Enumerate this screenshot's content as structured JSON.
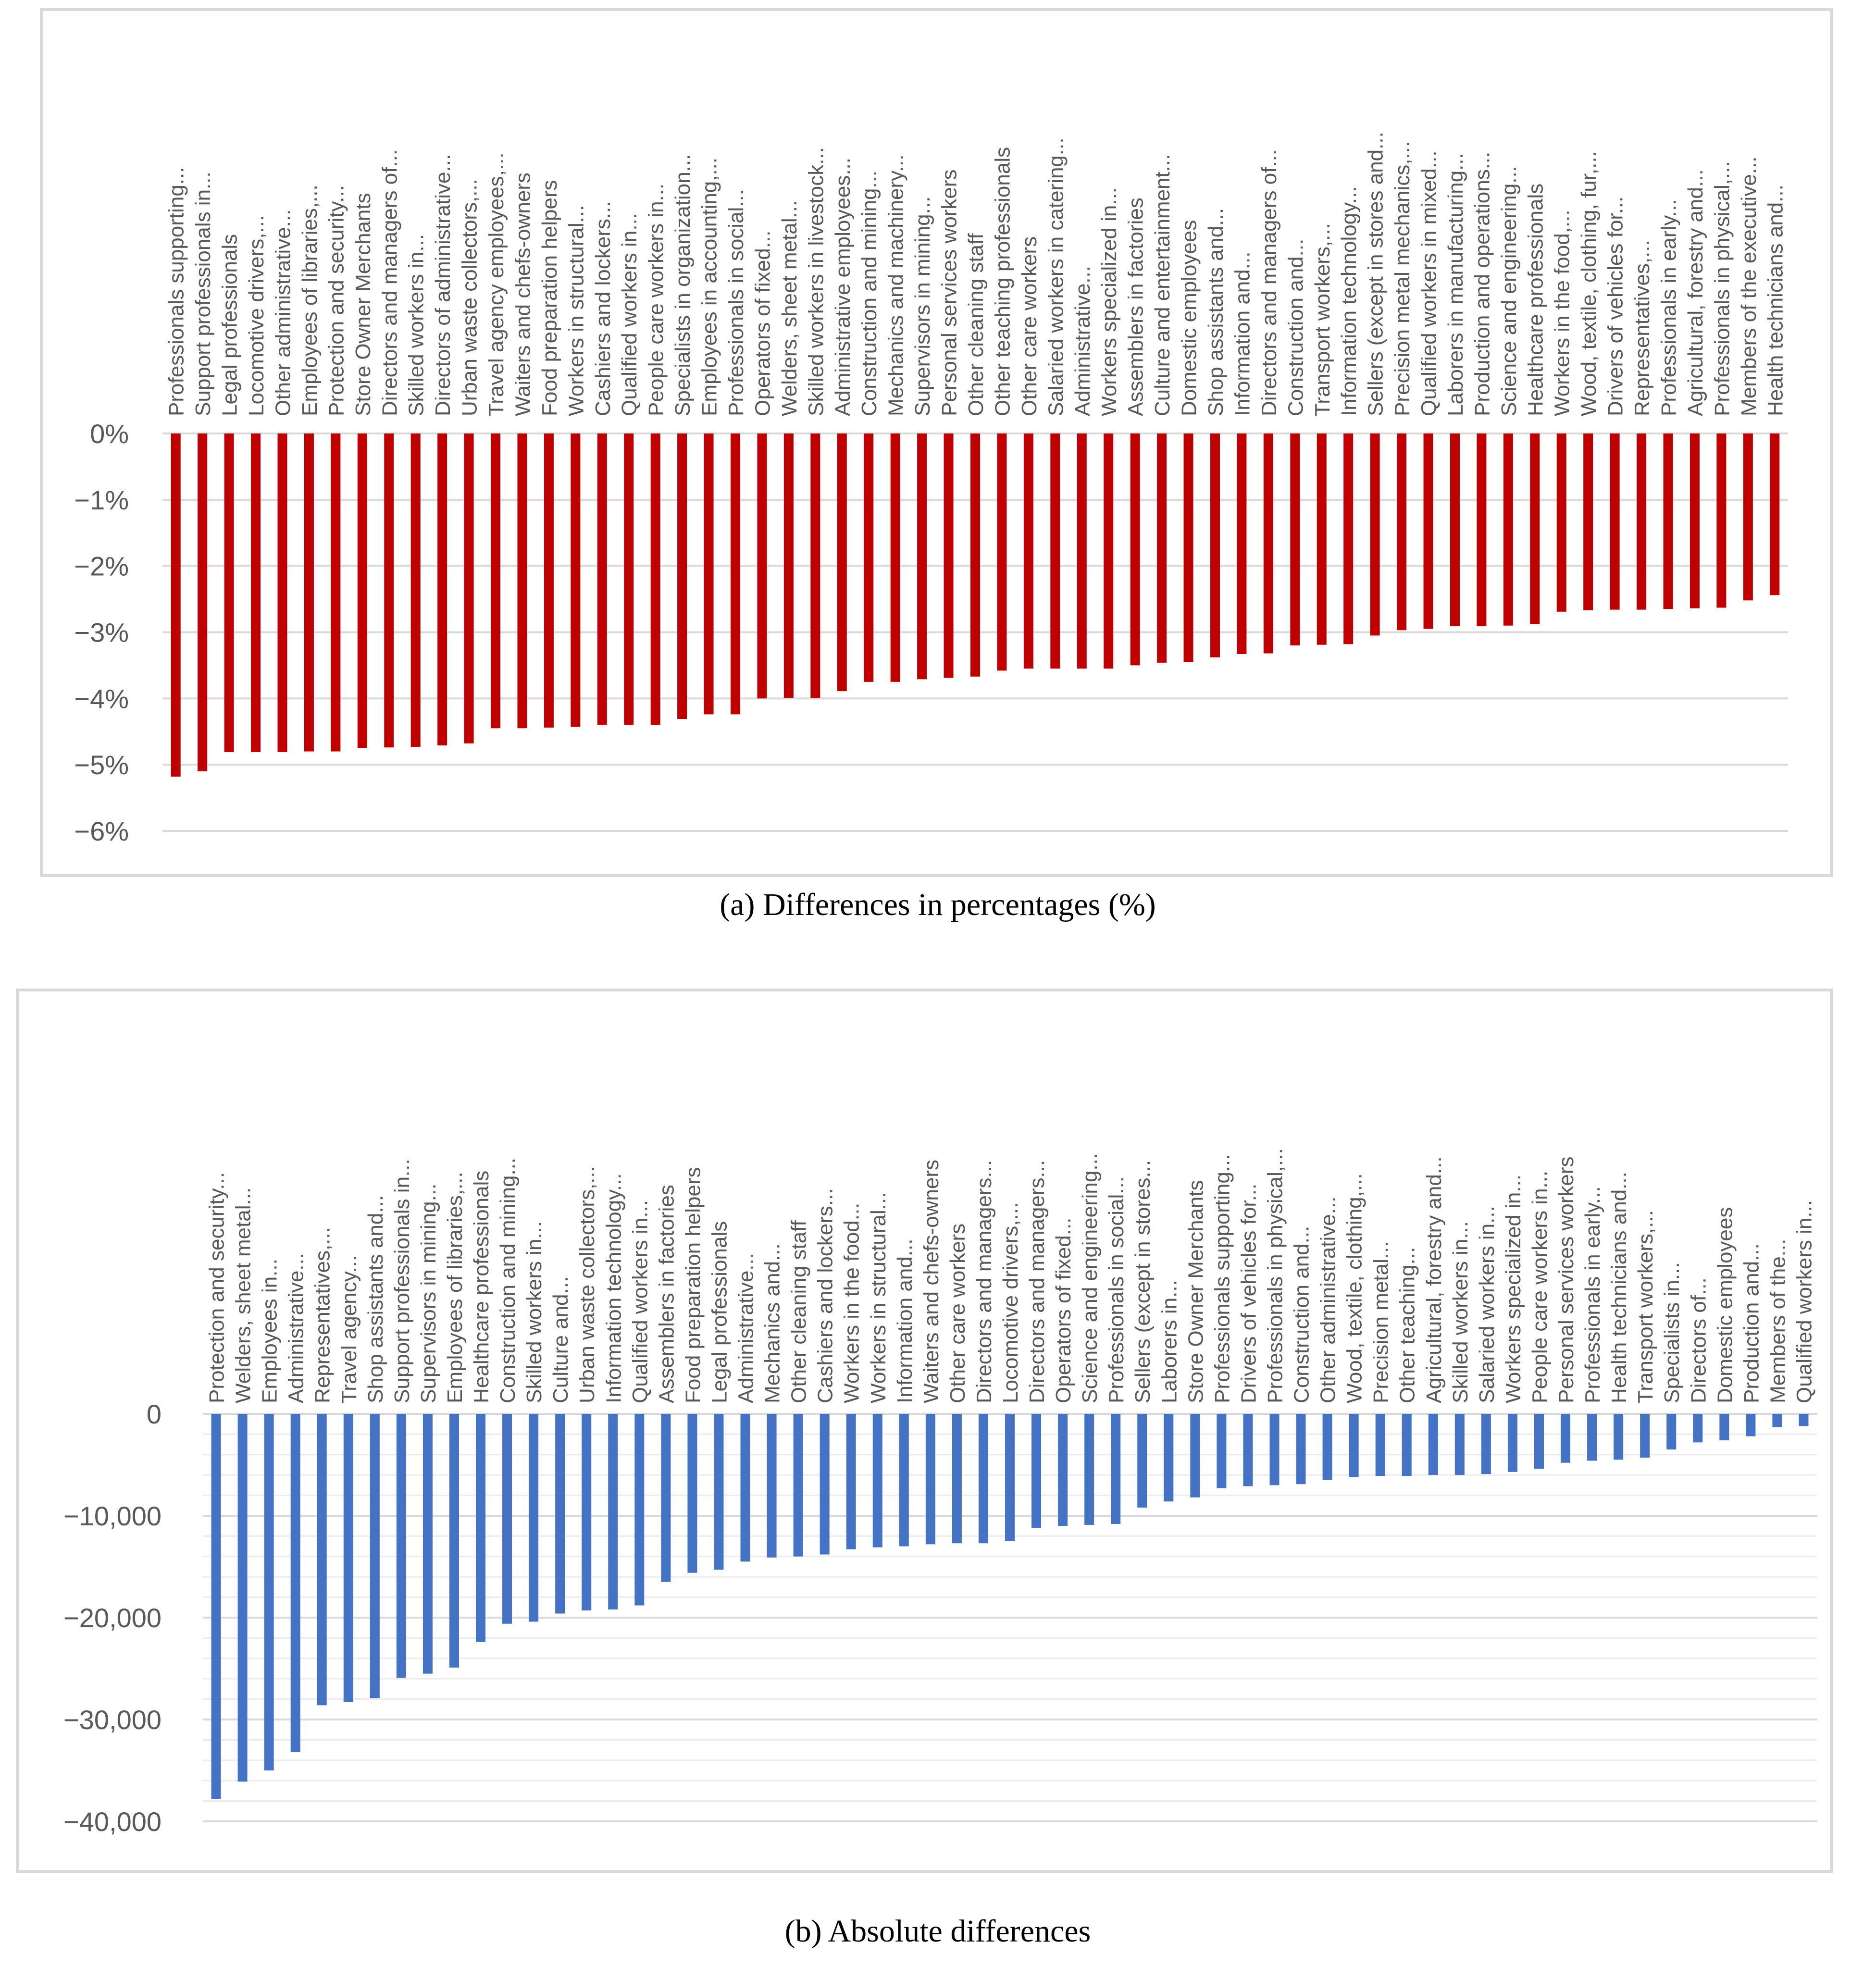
{
  "chart_data": [
    {
      "type": "bar",
      "title": "",
      "caption": "(a) Differences in percentages (%)",
      "xlabel": "",
      "ylabel": "",
      "ylim": [
        -6,
        0
      ],
      "y_ticks": [
        "0%",
        "−1%",
        "−2%",
        "−3%",
        "−4%",
        "−5%",
        "−6%"
      ],
      "grid": true,
      "color": "#c00000",
      "categories": [
        "Professionals supporting...",
        "Support professionals in...",
        "Legal professionals",
        "Locomotive drivers,...",
        "Other administrative...",
        "Employees of libraries,...",
        "Protection and security...",
        "Store Owner Merchants",
        "Directors and managers of...",
        "Skilled workers in...",
        "Directors of administrative...",
        "Urban waste collectors,...",
        "Travel agency employees,...",
        "Waiters and chefs-owners",
        "Food preparation helpers",
        "Workers in structural...",
        "Cashiers and lockers...",
        "Qualified workers in...",
        "People care workers in...",
        "Specialists in organization...",
        "Employees in accounting,...",
        "Professionals in social...",
        "Operators of fixed...",
        "Welders, sheet metal...",
        "Skilled workers in livestock...",
        "Administrative employees...",
        "Construction and mining...",
        "Mechanics and machinery...",
        "Supervisors in mining...",
        "Personal services workers",
        "Other cleaning staff",
        "Other teaching professionals",
        "Other care workers",
        "Salaried workers in catering...",
        "Administrative...",
        "Workers specialized in...",
        "Assemblers in factories",
        "Culture and entertainment...",
        "Domestic employees",
        "Shop assistants and...",
        "Information and...",
        "Directors and managers of...",
        "Construction and...",
        "Transport workers,...",
        "Information technology...",
        "Sellers (except in stores and...",
        "Precision metal mechanics,...",
        "Qualified workers in mixed...",
        "Laborers in manufacturing...",
        "Production and operations...",
        "Science and engineering...",
        "Healthcare professionals",
        "Workers in the food,...",
        "Wood, textile, clothing, fur,...",
        "Drivers of vehicles for...",
        "Representatives,...",
        "Professionals in early...",
        "Agricultural, forestry and...",
        "Professionals in physical,...",
        "Members of the executive...",
        "Health technicians and..."
      ],
      "values": [
        -5.18,
        -5.1,
        -4.81,
        -4.81,
        -4.81,
        -4.8,
        -4.8,
        -4.75,
        -4.74,
        -4.73,
        -4.71,
        -4.68,
        -4.45,
        -4.45,
        -4.44,
        -4.43,
        -4.4,
        -4.4,
        -4.4,
        -4.31,
        -4.24,
        -4.24,
        -4.0,
        -3.99,
        -3.99,
        -3.89,
        -3.75,
        -3.75,
        -3.71,
        -3.69,
        -3.67,
        -3.58,
        -3.55,
        -3.55,
        -3.55,
        -3.55,
        -3.5,
        -3.46,
        -3.45,
        -3.38,
        -3.33,
        -3.32,
        -3.2,
        -3.19,
        -3.18,
        -3.05,
        -2.97,
        -2.95,
        -2.91,
        -2.91,
        -2.9,
        -2.88,
        -2.69,
        -2.67,
        -2.66,
        -2.66,
        -2.65,
        -2.64,
        -2.63,
        -2.52,
        -2.44
      ]
    },
    {
      "type": "bar",
      "title": "",
      "caption": "(b) Absolute differences",
      "xlabel": "",
      "ylabel": "",
      "ylim": [
        -40000,
        0
      ],
      "y_ticks": [
        "0",
        "−10,000",
        "−20,000",
        "−30,000",
        "−40,000"
      ],
      "grid": true,
      "color": "#4472c4",
      "categories": [
        "Protection and security...",
        "Welders, sheet metal...",
        "Employees in...",
        "Administrative...",
        "Representatives,...",
        "Travel agency...",
        "Shop assistants and...",
        "Support professionals in...",
        "Supervisors in mining...",
        "Employees of libraries,...",
        "Healthcare professionals",
        "Construction and mining...",
        "Skilled workers in...",
        "Culture and...",
        "Urban waste collectors,...",
        "Information technology...",
        "Qualified workers in...",
        "Assemblers in factories",
        "Food preparation helpers",
        "Legal professionals",
        "Administrative...",
        "Mechanics and...",
        "Other cleaning staff",
        "Cashiers and lockers...",
        "Workers in the food...",
        "Workers in structural...",
        "Information and...",
        "Waiters and chefs-owners",
        "Other care workers",
        "Directors and managers...",
        "Locomotive drivers,...",
        "Directors and managers...",
        "Operators of fixed...",
        "Science and engineering...",
        "Professionals in social...",
        "Sellers (except in stores...",
        "Laborers in...",
        "Store Owner Merchants",
        "Professionals supporting...",
        "Drivers of vehicles for...",
        "Professionals in physical,...",
        "Construction and...",
        "Other administrative...",
        "Wood, textile, clothing,...",
        "Precision metal...",
        "Other teaching...",
        "Agricultural, forestry and...",
        "Skilled workers in...",
        "Salaried workers in...",
        "Workers specialized in...",
        "People care workers in...",
        "Personal services workers",
        "Professionals in early...",
        "Health technicians and...",
        "Transport workers,...",
        "Specialists in...",
        "Directors of...",
        "Domestic employees",
        "Production and...",
        "Members of the...",
        "Qualified workers in..."
      ],
      "values": [
        -37800,
        -36100,
        -35000,
        -33200,
        -28600,
        -28300,
        -27900,
        -25900,
        -25500,
        -24900,
        -22400,
        -20600,
        -20400,
        -19600,
        -19300,
        -19200,
        -18800,
        -16500,
        -15600,
        -15300,
        -14500,
        -14100,
        -14000,
        -13800,
        -13300,
        -13100,
        -13000,
        -12800,
        -12700,
        -12700,
        -12500,
        -11200,
        -11000,
        -10900,
        -10800,
        -9200,
        -8600,
        -8200,
        -7300,
        -7100,
        -7000,
        -6900,
        -6500,
        -6200,
        -6100,
        -6100,
        -6000,
        -6000,
        -5900,
        -5700,
        -5400,
        -4800,
        -4600,
        -4500,
        -4300,
        -3500,
        -2800,
        -2600,
        -2200,
        -1300,
        -1200
      ]
    }
  ]
}
